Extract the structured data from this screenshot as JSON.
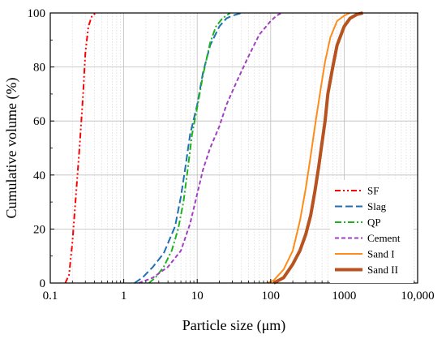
{
  "chart_data": {
    "type": "line",
    "xlabel": "Particle size (μm)",
    "ylabel": "Cumulative volume (%)",
    "x_scale": "log",
    "xlim": [
      0.1,
      10000
    ],
    "ylim": [
      0,
      100
    ],
    "x_ticks": [
      0.1,
      1,
      10,
      100,
      1000,
      10000
    ],
    "x_tick_labels": [
      "0.1",
      "1",
      "10",
      "100",
      "1000",
      "10,000"
    ],
    "y_ticks": [
      0,
      20,
      40,
      60,
      80,
      100
    ],
    "y_tick_labels": [
      "0",
      "20",
      "40",
      "60",
      "80",
      "100"
    ],
    "grid": true,
    "minor_grid": true,
    "legend_position": "bottom-right",
    "series": [
      {
        "name": "SF",
        "color": "#ff0000",
        "style": "dash-dot-dot",
        "width": 2,
        "points": [
          [
            0.16,
            0
          ],
          [
            0.18,
            3
          ],
          [
            0.2,
            15
          ],
          [
            0.22,
            30
          ],
          [
            0.25,
            50
          ],
          [
            0.28,
            70
          ],
          [
            0.3,
            85
          ],
          [
            0.33,
            95
          ],
          [
            0.37,
            99
          ],
          [
            0.42,
            100
          ]
        ]
      },
      {
        "name": "Slag",
        "color": "#1f6fb2",
        "style": "long-dash",
        "width": 2,
        "points": [
          [
            1.4,
            0
          ],
          [
            1.8,
            2
          ],
          [
            2.5,
            6
          ],
          [
            3.5,
            11
          ],
          [
            5,
            21
          ],
          [
            6,
            32
          ],
          [
            7,
            44
          ],
          [
            8,
            55
          ],
          [
            10,
            66
          ],
          [
            12,
            78
          ],
          [
            15,
            88
          ],
          [
            20,
            95
          ],
          [
            25,
            98
          ],
          [
            30,
            99
          ],
          [
            40,
            100
          ]
        ]
      },
      {
        "name": "QP",
        "color": "#1eb31e",
        "style": "dash-dot",
        "width": 2,
        "points": [
          [
            2.2,
            0
          ],
          [
            2.7,
            2
          ],
          [
            3.5,
            6
          ],
          [
            4.5,
            12
          ],
          [
            5.5,
            20
          ],
          [
            6.5,
            30
          ],
          [
            7.5,
            43
          ],
          [
            8.5,
            55
          ],
          [
            10,
            65
          ],
          [
            12,
            77
          ],
          [
            15,
            89
          ],
          [
            18,
            95
          ],
          [
            22,
            98
          ],
          [
            28,
            100
          ]
        ]
      },
      {
        "name": "Cement",
        "color": "#a040c0",
        "style": "dashed",
        "width": 2,
        "points": [
          [
            1.6,
            0
          ],
          [
            2.5,
            2
          ],
          [
            4,
            6
          ],
          [
            6,
            12
          ],
          [
            8,
            22
          ],
          [
            10,
            33
          ],
          [
            12,
            42
          ],
          [
            15,
            50
          ],
          [
            20,
            58
          ],
          [
            25,
            66
          ],
          [
            35,
            75
          ],
          [
            50,
            84
          ],
          [
            70,
            92
          ],
          [
            100,
            97
          ],
          [
            120,
            99
          ],
          [
            140,
            100
          ]
        ]
      },
      {
        "name": "Sand I",
        "color": "#ff8c1a",
        "style": "solid",
        "width": 2,
        "points": [
          [
            90,
            0
          ],
          [
            110,
            1
          ],
          [
            150,
            5
          ],
          [
            200,
            12
          ],
          [
            250,
            23
          ],
          [
            300,
            35
          ],
          [
            350,
            47
          ],
          [
            400,
            58
          ],
          [
            480,
            72
          ],
          [
            550,
            82
          ],
          [
            650,
            91
          ],
          [
            800,
            97
          ],
          [
            1000,
            99
          ],
          [
            1200,
            100
          ]
        ]
      },
      {
        "name": "Sand II",
        "color": "#b8531f",
        "style": "solid",
        "width": 4,
        "points": [
          [
            110,
            0
          ],
          [
            150,
            2
          ],
          [
            200,
            7
          ],
          [
            250,
            12
          ],
          [
            300,
            18
          ],
          [
            350,
            25
          ],
          [
            400,
            34
          ],
          [
            450,
            43
          ],
          [
            500,
            52
          ],
          [
            550,
            60
          ],
          [
            600,
            70
          ],
          [
            700,
            80
          ],
          [
            800,
            88
          ],
          [
            1000,
            95
          ],
          [
            1200,
            98
          ],
          [
            1500,
            99.5
          ],
          [
            1800,
            100
          ]
        ]
      }
    ]
  }
}
